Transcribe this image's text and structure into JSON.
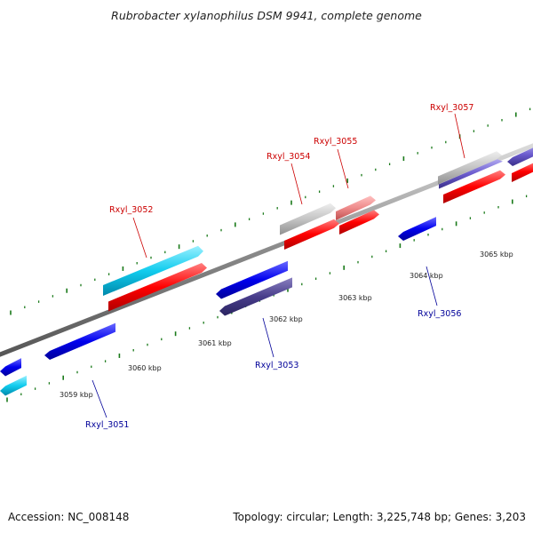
{
  "title": "Rubrobacter xylanophilus DSM 9941, complete genome",
  "footer": {
    "accession": "Accession: NC_008148",
    "summary": "Topology: circular; Length: 3,225,748 bp; Genes: 3,203"
  },
  "colors": {
    "backbone": "#8a8a8a",
    "tick": "#1a7a1a",
    "forward_label": "#cc0000",
    "reverse_label": "#000099",
    "cds_red": "#ff0000",
    "cds_blue": "#0000ee",
    "cds_cyan": "#00ccee",
    "cds_slate": "#4a3f8a",
    "cds_grey": "#bbbbbb",
    "cds_pink": "#e88080",
    "cds_violet": "#6a5acd"
  },
  "scale_labels": [
    "3059 kbp",
    "3060 kbp",
    "3061 kbp",
    "3062 kbp",
    "3063 kbp",
    "3064 kbp",
    "3065 kbp"
  ],
  "gene_labels": [
    {
      "text": "Rxyl_3051",
      "strand": "reverse"
    },
    {
      "text": "Rxyl_3052",
      "strand": "forward"
    },
    {
      "text": "Rxyl_3053",
      "strand": "reverse"
    },
    {
      "text": "Rxyl_3054",
      "strand": "forward"
    },
    {
      "text": "Rxyl_3055",
      "strand": "forward"
    },
    {
      "text": "Rxyl_3056",
      "strand": "reverse"
    },
    {
      "text": "Rxyl_3057",
      "strand": "forward"
    }
  ]
}
